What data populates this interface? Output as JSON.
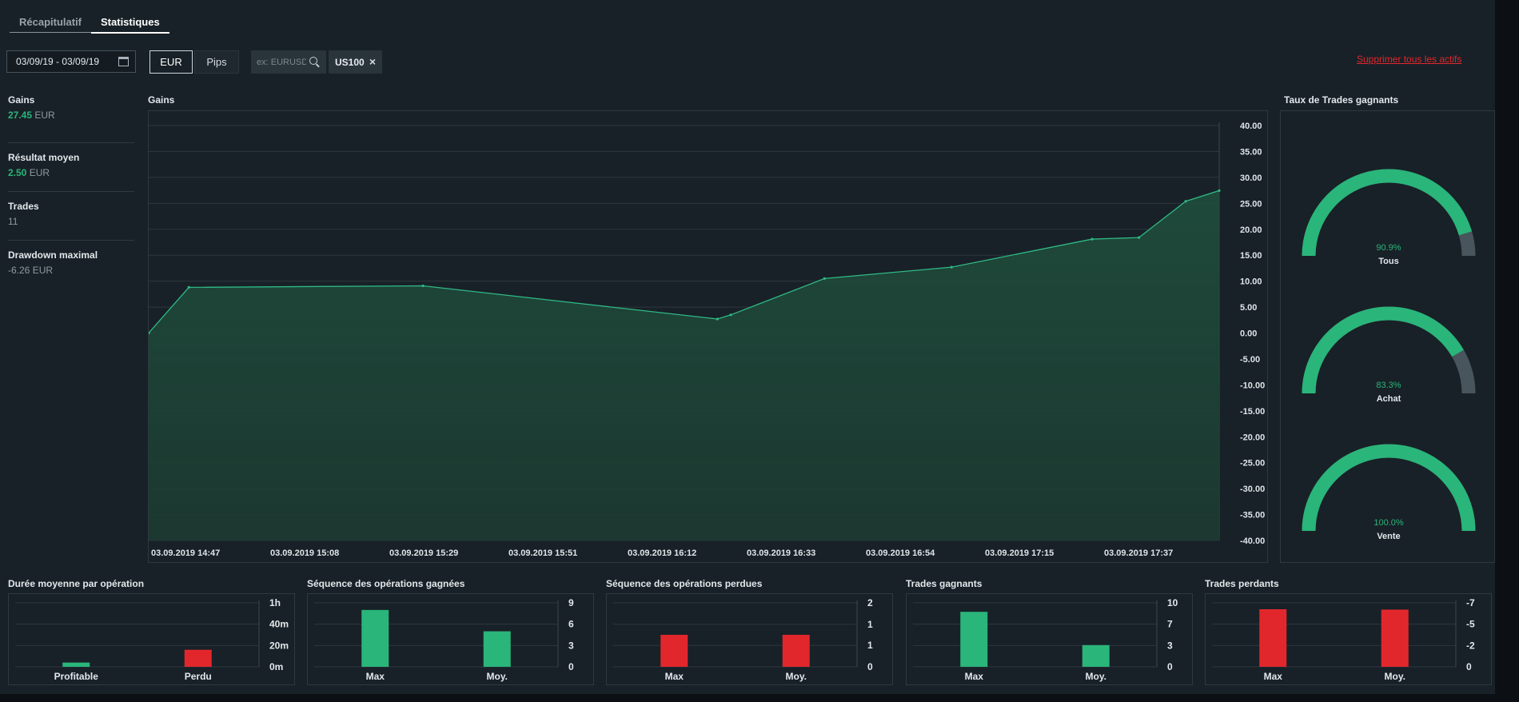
{
  "tabs": [
    {
      "label": "Récapitulatif",
      "active": false
    },
    {
      "label": "Statistiques",
      "active": true
    }
  ],
  "filters": {
    "date_range": "03/09/19 - 03/09/19",
    "currency_options": [
      "EUR",
      "Pips"
    ],
    "selected_currency": "EUR",
    "search_placeholder": "ex: EURUSD",
    "selected_asset": "US100",
    "delete_all_label": "Supprimer tous les actifs"
  },
  "summary": [
    {
      "label": "Gains",
      "value": "27.45",
      "unit": "EUR",
      "positive": true
    },
    {
      "label": "Résultat moyen",
      "value": "2.50",
      "unit": "EUR",
      "positive": true
    },
    {
      "label": "Trades",
      "value": "11",
      "unit": "",
      "positive": null
    },
    {
      "label": "Drawdown maximal",
      "value": "-6.26",
      "unit": "EUR",
      "positive": false
    }
  ],
  "colors": {
    "accent_green": "#2ab57a",
    "loss_red": "#e2272c",
    "gauge_track": "#48555d",
    "background": "#182127"
  },
  "chart_data": [
    {
      "id": "gains",
      "type": "area",
      "title": "Gains",
      "x": [
        "14:47",
        "14:53",
        "15:28",
        "16:12",
        "16:14",
        "16:28",
        "16:47",
        "17:08",
        "17:15",
        "17:22",
        "17:27"
      ],
      "values": [
        0.0,
        8.8,
        9.1,
        2.7,
        3.5,
        10.5,
        12.7,
        18.1,
        18.4,
        25.4,
        27.45
      ],
      "x_tick_labels": [
        "03.09.2019 14:47",
        "03.09.2019 15:08",
        "03.09.2019 15:29",
        "03.09.2019 15:51",
        "03.09.2019 16:12",
        "03.09.2019 16:33",
        "03.09.2019 16:54",
        "03.09.2019 17:15",
        "03.09.2019 17:37"
      ],
      "ylim": [
        -40,
        40
      ],
      "y_ticks": [
        40,
        35,
        30,
        25,
        20,
        15,
        10,
        5,
        0,
        -5,
        -10,
        -15,
        -20,
        -25,
        -30,
        -35,
        -40
      ],
      "grid": true
    },
    {
      "id": "win-rate",
      "type": "gauge",
      "title": "Taux de Trades gagnants",
      "items": [
        {
          "label": "Tous",
          "percent": 90.9,
          "display": "90.9%"
        },
        {
          "label": "Achat",
          "percent": 83.3,
          "display": "83.3%"
        },
        {
          "label": "Vente",
          "percent": 100.0,
          "display": "100.0%"
        }
      ]
    },
    {
      "id": "avg-duration",
      "type": "bar",
      "title": "Durée moyenne par opération",
      "categories": [
        "Profitable",
        "Perdu"
      ],
      "values": [
        4,
        16
      ],
      "colors": [
        "#2ab57a",
        "#e2272c"
      ],
      "ylim": [
        0,
        60
      ],
      "y_ticks": [
        {
          "value": 60,
          "label": "1h"
        },
        {
          "value": 40,
          "label": "40m"
        },
        {
          "value": 20,
          "label": "20m"
        },
        {
          "value": 0,
          "label": "0m"
        }
      ]
    },
    {
      "id": "win-streak",
      "type": "bar",
      "title": "Séquence des opérations gagnées",
      "categories": [
        "Max",
        "Moy."
      ],
      "values": [
        8,
        5
      ],
      "colors": [
        "#2ab57a",
        "#2ab57a"
      ],
      "ylim": [
        0,
        9
      ],
      "y_ticks": [
        {
          "value": 9,
          "label": "9"
        },
        {
          "value": 6,
          "label": "6"
        },
        {
          "value": 3,
          "label": "3"
        },
        {
          "value": 0,
          "label": "0"
        }
      ]
    },
    {
      "id": "loss-streak",
      "type": "bar",
      "title": "Séquence des opérations perdues",
      "categories": [
        "Max",
        "Moy."
      ],
      "values": [
        1,
        1
      ],
      "colors": [
        "#e2272c",
        "#e2272c"
      ],
      "ylim": [
        0,
        2
      ],
      "y_ticks": [
        {
          "value": 2,
          "label": "2"
        },
        {
          "value": 1.33,
          "label": "1"
        },
        {
          "value": 0.67,
          "label": "1"
        },
        {
          "value": 0,
          "label": "0"
        }
      ]
    },
    {
      "id": "winning-trades",
      "type": "bar",
      "title": "Trades gagnants",
      "categories": [
        "Max",
        "Moy."
      ],
      "values": [
        8.6,
        3.4
      ],
      "colors": [
        "#2ab57a",
        "#2ab57a"
      ],
      "ylim": [
        0,
        10
      ],
      "y_ticks": [
        {
          "value": 10,
          "label": "10"
        },
        {
          "value": 6.67,
          "label": "7"
        },
        {
          "value": 3.33,
          "label": "3"
        },
        {
          "value": 0,
          "label": "0"
        }
      ]
    },
    {
      "id": "losing-trades",
      "type": "bar",
      "title": "Trades perdants",
      "categories": [
        "Max",
        "Moy."
      ],
      "values": [
        -6.3,
        -6.26
      ],
      "colors": [
        "#e2272c",
        "#e2272c"
      ],
      "ylim": [
        0,
        -7
      ],
      "y_ticks": [
        {
          "value": -7,
          "label": "-7"
        },
        {
          "value": -4.67,
          "label": "-5"
        },
        {
          "value": -2.33,
          "label": "-2"
        },
        {
          "value": 0,
          "label": "0"
        }
      ]
    }
  ]
}
